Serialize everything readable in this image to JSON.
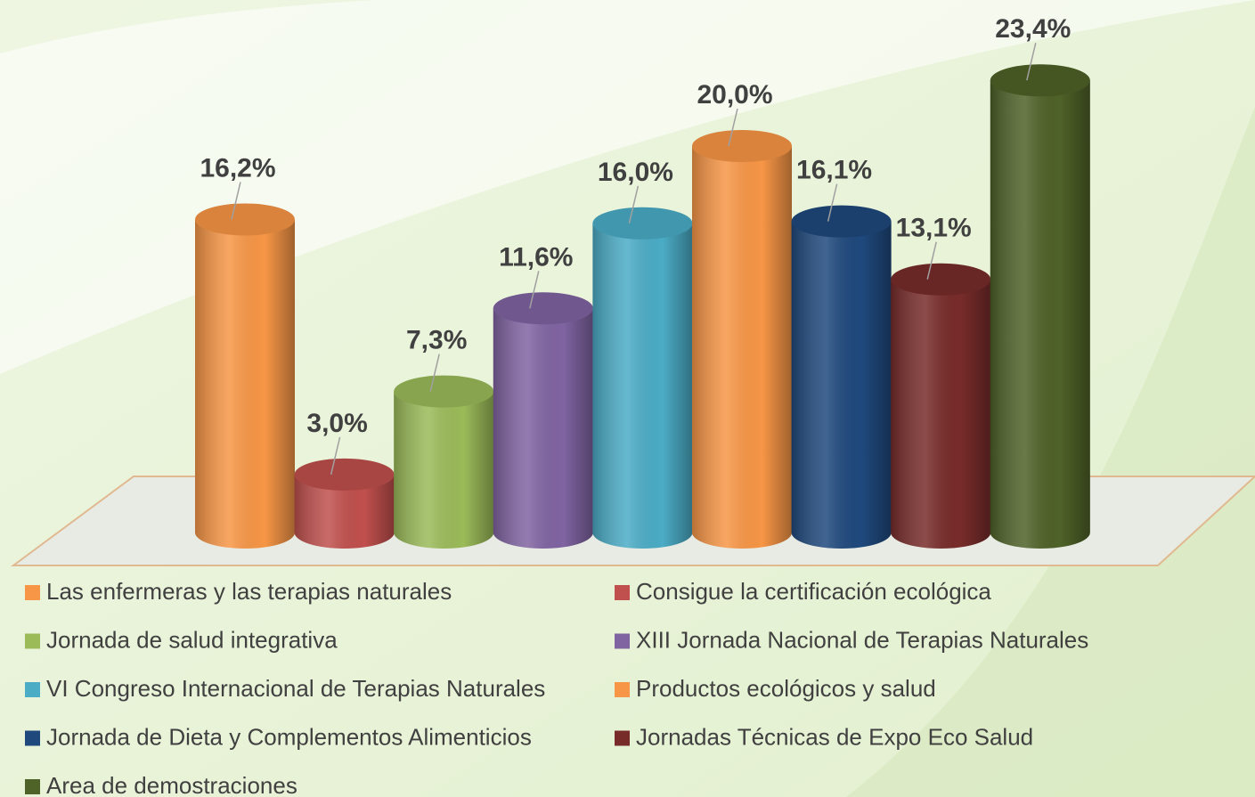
{
  "chart_data": {
    "type": "bar",
    "categories": [
      "Las enfermeras y las terapias naturales",
      "Consigue la certificación ecológica",
      "Jornada de salud integrativa",
      "XIII Jornada Nacional de Terapias Naturales",
      "VI Congreso Internacional de Terapias Naturales",
      "Productos ecológicos y salud",
      "Jornada de Dieta y Complementos Alimenticios",
      "Jornadas Técnicas de Expo Eco Salud",
      "Area de demostraciones"
    ],
    "values": [
      16.2,
      3.0,
      7.3,
      11.6,
      16.0,
      20.0,
      16.1,
      13.1,
      23.4
    ],
    "value_labels": [
      "16,2%",
      "3,0%",
      "7,3%",
      "11,6%",
      "16,0%",
      "20,0%",
      "16,1%",
      "13,1%",
      "23,4%"
    ],
    "colors": [
      "#f79646",
      "#c0504d",
      "#9bbb59",
      "#8064a2",
      "#4bacc6",
      "#f79646",
      "#1f497d",
      "#772c2a",
      "#4f6228"
    ]
  }
}
